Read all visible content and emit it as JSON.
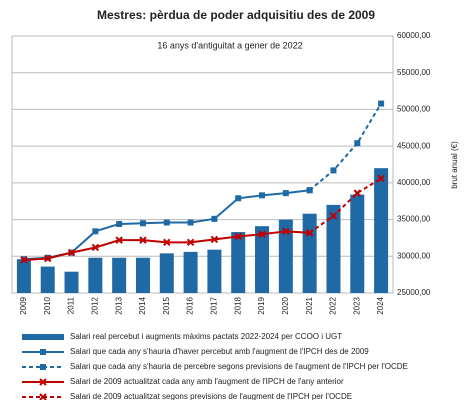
{
  "chart_data": {
    "type": "bar",
    "title": "Mestres: pèrdua de poder adquisitiu des de 2009",
    "subtitle": "16 anys d'antiguitat a gener de 2022",
    "y_label": "brut anual (€)",
    "categories": [
      "2009",
      "2010",
      "2011",
      "2012",
      "2013",
      "2014",
      "2015",
      "2016",
      "2017",
      "2018",
      "2019",
      "2020",
      "2021",
      "2022",
      "2023",
      "2024"
    ],
    "series": [
      {
        "name": "Salari real percebut i augments màxims pactats 2022-2024 per CCOO i UGT",
        "type": "bar",
        "color": "#1f6aa5",
        "values": [
          29600,
          28600,
          27900,
          29800,
          29800,
          29800,
          30400,
          30600,
          30900,
          33300,
          34100,
          35000,
          35800,
          37000,
          38400,
          42000
        ]
      },
      {
        "name": "Salari que cada any s'hauria d'haver percebut amb l'augment de l'IPCH des de 2009",
        "type": "line",
        "style": "solid",
        "marker": "square",
        "color": "#1f6aa5",
        "values": [
          29600,
          29800,
          30500,
          33400,
          34400,
          34500,
          34600,
          34600,
          35100,
          37900,
          38300,
          38600,
          39000,
          null,
          null,
          null
        ]
      },
      {
        "name": "Salari que cada any s'hauria de percebre segons previsions de l'augment de l'IPCH per l'OCDE",
        "type": "line",
        "style": "dashed",
        "marker": "square",
        "color": "#1f6aa5",
        "values": [
          null,
          null,
          null,
          null,
          null,
          null,
          null,
          null,
          null,
          null,
          null,
          null,
          39000,
          41700,
          45400,
          50800
        ]
      },
      {
        "name": "Salari de 2009 actualitzat cada any amb l'augment de l'IPCH de l'any anterior",
        "type": "line",
        "style": "solid",
        "marker": "x",
        "color": "#c00000",
        "values": [
          29500,
          29700,
          30500,
          31200,
          32200,
          32200,
          31900,
          31900,
          32300,
          32700,
          33000,
          33400,
          33200,
          null,
          null,
          null
        ]
      },
      {
        "name": "Salari de 2009 actualitzat segons previsions de l'augment de l'IPCH per l'OCDE",
        "type": "line",
        "style": "dashed",
        "marker": "x",
        "color": "#c00000",
        "values": [
          null,
          null,
          null,
          null,
          null,
          null,
          null,
          null,
          null,
          null,
          null,
          null,
          33200,
          35500,
          38600,
          40600
        ]
      }
    ],
    "ylim": [
      25000,
      60000
    ],
    "yticks": [
      {
        "value": 25000,
        "label": "25000,00"
      },
      {
        "value": 30000,
        "label": "30000,00"
      },
      {
        "value": 35000,
        "label": "35000,00"
      },
      {
        "value": 40000,
        "label": "40000,00"
      },
      {
        "value": 45000,
        "label": "45000,00"
      },
      {
        "value": 50000,
        "label": "50000,00"
      },
      {
        "value": 55000,
        "label": "55000,00"
      },
      {
        "value": 60000,
        "label": "60000,00"
      }
    ],
    "grid": true
  }
}
